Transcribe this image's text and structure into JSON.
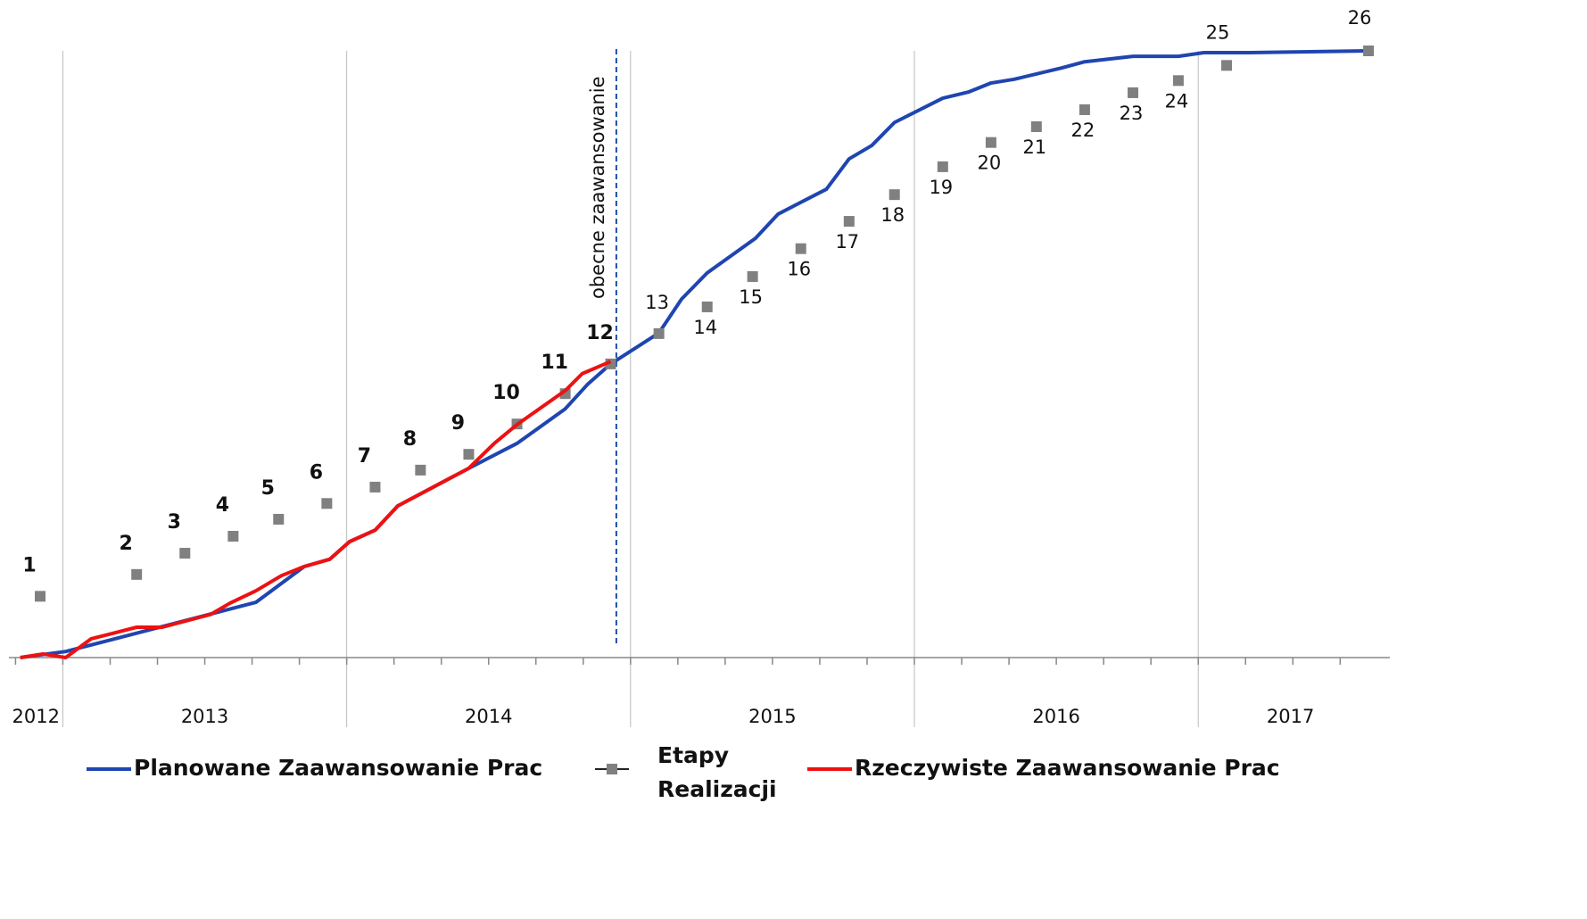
{
  "chart_data": {
    "type": "line",
    "xlim": [
      2012.81,
      2017.65
    ],
    "ylim": [
      0,
      100
    ],
    "year_boundaries": [
      2013,
      2014,
      2015,
      2016,
      2017
    ],
    "year_labels": [
      "2012",
      "2013",
      "2014",
      "2015",
      "2016",
      "2017"
    ],
    "minor_tick_step": 0.16667,
    "grid": true,
    "current_marker": {
      "x": 2014.95,
      "label": "obecne zaawansowanie",
      "color": "#1f4ea8"
    },
    "series": [
      {
        "name": "Planowane Zaawansowanie Prac",
        "color": "#1f45b0",
        "kind": "line",
        "x": [
          2012.85,
          2013.01,
          2013.68,
          2013.85,
          2013.94,
          2014.01,
          2014.1,
          2014.18,
          2014.43,
          2014.6,
          2014.77,
          2014.85,
          2014.93,
          2015.1,
          2015.18,
          2015.27,
          2015.44,
          2015.52,
          2015.69,
          2015.77,
          2015.85,
          2015.93,
          2016.1,
          2016.19,
          2016.27,
          2016.35,
          2016.52,
          2016.6,
          2016.77,
          2016.93,
          2017.02,
          2017.18,
          2017.6
        ],
        "values": [
          0,
          1.0,
          9.1,
          15.0,
          16.2,
          19.1,
          21.0,
          25.0,
          31.2,
          35.3,
          41.0,
          45.1,
          48.4,
          53.5,
          59.1,
          63.4,
          69.1,
          73.1,
          77.2,
          82.2,
          84.4,
          88.2,
          92.2,
          93.2,
          94.7,
          95.3,
          97.2,
          98.2,
          99.1,
          99.1,
          99.7,
          99.7,
          100
        ]
      },
      {
        "name": "Etapy Realizacji",
        "color": "#808080",
        "kind": "markers",
        "x": [
          2012.92,
          2013.26,
          2013.43,
          2013.6,
          2013.76,
          2013.93,
          2014.1,
          2014.26,
          2014.43,
          2014.6,
          2014.77,
          2014.93,
          2015.1,
          2015.27,
          2015.43,
          2015.6,
          2015.77,
          2015.93,
          2016.1,
          2016.27,
          2016.43,
          2016.6,
          2016.77,
          2016.93,
          2017.1,
          2017.6
        ],
        "values": [
          10.1,
          13.7,
          17.2,
          20.0,
          22.8,
          25.4,
          28.1,
          30.9,
          33.5,
          38.5,
          43.5,
          48.4,
          53.4,
          57.8,
          62.8,
          67.4,
          71.9,
          76.3,
          80.9,
          84.9,
          87.5,
          90.3,
          93.1,
          95.1,
          97.6,
          100
        ],
        "labels": [
          "1",
          "2",
          "3",
          "4",
          "5",
          "6",
          "7",
          "8",
          "9",
          "10",
          "11",
          "12",
          "13",
          "14",
          "15",
          "16",
          "17",
          "18",
          "19",
          "20",
          "21",
          "22",
          "23",
          "24",
          "25",
          "26"
        ]
      },
      {
        "name": "Rzeczywiste Zaawansowanie Prac",
        "color": "#ee1111",
        "kind": "line",
        "x": [
          2012.85,
          2012.93,
          2013.01,
          2013.1,
          2013.26,
          2013.35,
          2013.52,
          2013.59,
          2013.68,
          2013.77,
          2013.85,
          2013.94,
          2014.01,
          2014.1,
          2014.18,
          2014.43,
          2014.52,
          2014.6,
          2014.77,
          2014.83,
          2014.93
        ],
        "values": [
          0,
          0.6,
          0,
          3.1,
          5.0,
          5.0,
          7.1,
          9.0,
          11.0,
          13.5,
          15.0,
          16.2,
          19.1,
          21.0,
          25.0,
          31.2,
          35.3,
          38.4,
          44.0,
          46.8,
          48.8
        ]
      }
    ]
  }
}
